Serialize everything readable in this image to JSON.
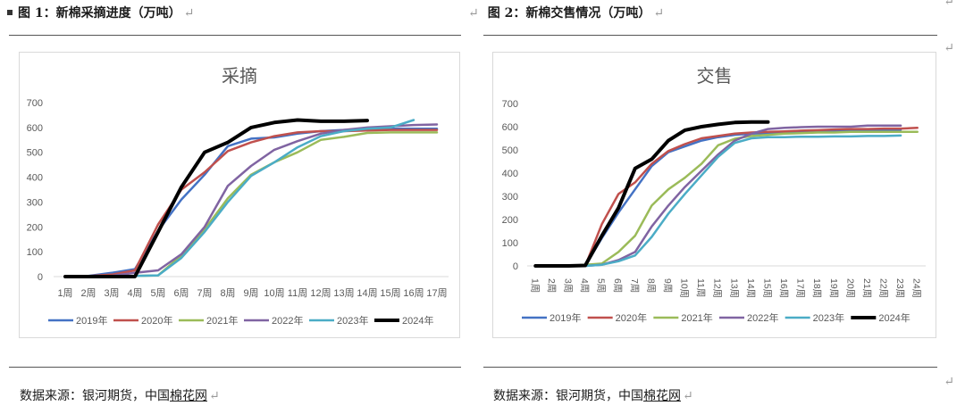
{
  "left": {
    "bullet_icon": "square-bullet-icon",
    "fig_title": "图 1：新棉采摘进度（万吨）",
    "return_mark": "↵",
    "source_label": "数据来源：",
    "source_text": "银河期货，中国",
    "source_link": "棉花网",
    "source_mark": "↵"
  },
  "right": {
    "return_mark_before": "↵",
    "fig_title": "图 2：新棉交售情况（万吨）",
    "return_mark": "↵",
    "source_label": "数据来源：",
    "source_text": "银河期货，中国",
    "source_link": "棉花网",
    "source_mark": "↵"
  },
  "side_marks": [
    "↵",
    "↵",
    "↵"
  ],
  "chart_data": [
    {
      "type": "line",
      "title": "采摘",
      "xlabel": "",
      "ylabel": "",
      "ylim": [
        0,
        700
      ],
      "yticks": [
        0,
        100,
        200,
        300,
        400,
        500,
        600,
        700
      ],
      "grid": false,
      "legend": "bottom",
      "rotate_x_labels": false,
      "categories": [
        "1周",
        "2周",
        "3周",
        "4周",
        "5周",
        "6周",
        "7周",
        "8周",
        "9周",
        "10周",
        "11周",
        "12周",
        "13周",
        "14周",
        "15周",
        "16周",
        "17周"
      ],
      "series": [
        {
          "name": "2019年",
          "color": "#4472c4",
          "width": 2.5,
          "values": [
            0,
            3,
            15,
            30,
            185,
            310,
            410,
            525,
            555,
            560,
            575,
            585,
            590,
            592,
            595,
            595,
            595
          ]
        },
        {
          "name": "2020年",
          "color": "#c0504d",
          "width": 2.5,
          "values": [
            0,
            2,
            8,
            25,
            210,
            350,
            420,
            505,
            540,
            565,
            580,
            585,
            585,
            588,
            590,
            590,
            590
          ]
        },
        {
          "name": "2021年",
          "color": "#9bbb59",
          "width": 2.5,
          "values": [
            0,
            0,
            0,
            3,
            5,
            85,
            190,
            315,
            410,
            460,
            500,
            550,
            562,
            578,
            580,
            580,
            580
          ]
        },
        {
          "name": "2022年",
          "color": "#8064a2",
          "width": 2.5,
          "values": [
            0,
            0,
            3,
            15,
            25,
            90,
            200,
            365,
            445,
            510,
            545,
            575,
            590,
            600,
            605,
            610,
            612
          ]
        },
        {
          "name": "2023年",
          "color": "#4bacc6",
          "width": 2.5,
          "values": [
            0,
            0,
            0,
            3,
            5,
            75,
            180,
            300,
            405,
            460,
            520,
            565,
            585,
            595,
            600,
            630,
            null
          ]
        },
        {
          "name": "2024年",
          "color": "#000000",
          "width": 4,
          "values": [
            0,
            0,
            0,
            0,
            180,
            360,
            500,
            540,
            600,
            620,
            630,
            625,
            625,
            628,
            null,
            null,
            null
          ]
        }
      ]
    },
    {
      "type": "line",
      "title": "交售",
      "xlabel": "",
      "ylabel": "",
      "ylim": [
        0,
        700
      ],
      "yticks": [
        0,
        100,
        200,
        300,
        400,
        500,
        600,
        700
      ],
      "grid": false,
      "legend": "bottom",
      "rotate_x_labels": true,
      "categories": [
        "1周",
        "2周",
        "3周",
        "4周",
        "5周",
        "6周",
        "7周",
        "8周",
        "9周",
        "10周",
        "11周",
        "12周",
        "13周",
        "14周",
        "15周",
        "16周",
        "17周",
        "18周",
        "19周",
        "20周",
        "21周",
        "22周",
        "23周",
        "24周"
      ],
      "series": [
        {
          "name": "2019年",
          "color": "#4472c4",
          "width": 2.5,
          "values": [
            0,
            0,
            0,
            0,
            120,
            230,
            330,
            430,
            490,
            515,
            540,
            555,
            565,
            570,
            572,
            575,
            578,
            580,
            582,
            585,
            585,
            585,
            587,
            null
          ]
        },
        {
          "name": "2020年",
          "color": "#c0504d",
          "width": 2.5,
          "values": [
            0,
            0,
            0,
            0,
            180,
            310,
            360,
            440,
            495,
            525,
            550,
            560,
            570,
            575,
            578,
            580,
            583,
            585,
            588,
            590,
            590,
            592,
            592,
            595
          ]
        },
        {
          "name": "2021年",
          "color": "#9bbb59",
          "width": 2.5,
          "values": [
            0,
            0,
            0,
            5,
            10,
            60,
            130,
            260,
            330,
            380,
            440,
            520,
            548,
            560,
            565,
            570,
            572,
            575,
            575,
            578,
            578,
            578,
            578,
            578
          ]
        },
        {
          "name": "2022年",
          "color": "#8064a2",
          "width": 2.5,
          "values": [
            0,
            0,
            0,
            0,
            5,
            25,
            60,
            170,
            260,
            340,
            410,
            480,
            540,
            570,
            590,
            595,
            598,
            600,
            600,
            600,
            605,
            605,
            605,
            null
          ]
        },
        {
          "name": "2023年",
          "color": "#4bacc6",
          "width": 2.5,
          "values": [
            0,
            0,
            0,
            0,
            5,
            20,
            45,
            125,
            225,
            310,
            390,
            470,
            530,
            550,
            555,
            555,
            557,
            557,
            558,
            558,
            560,
            560,
            562,
            null
          ]
        },
        {
          "name": "2024年",
          "color": "#000000",
          "width": 4,
          "values": [
            0,
            0,
            0,
            2,
            130,
            250,
            420,
            460,
            540,
            585,
            600,
            610,
            618,
            620,
            620,
            null,
            null,
            null,
            null,
            null,
            null,
            null,
            null,
            null
          ]
        }
      ]
    }
  ]
}
